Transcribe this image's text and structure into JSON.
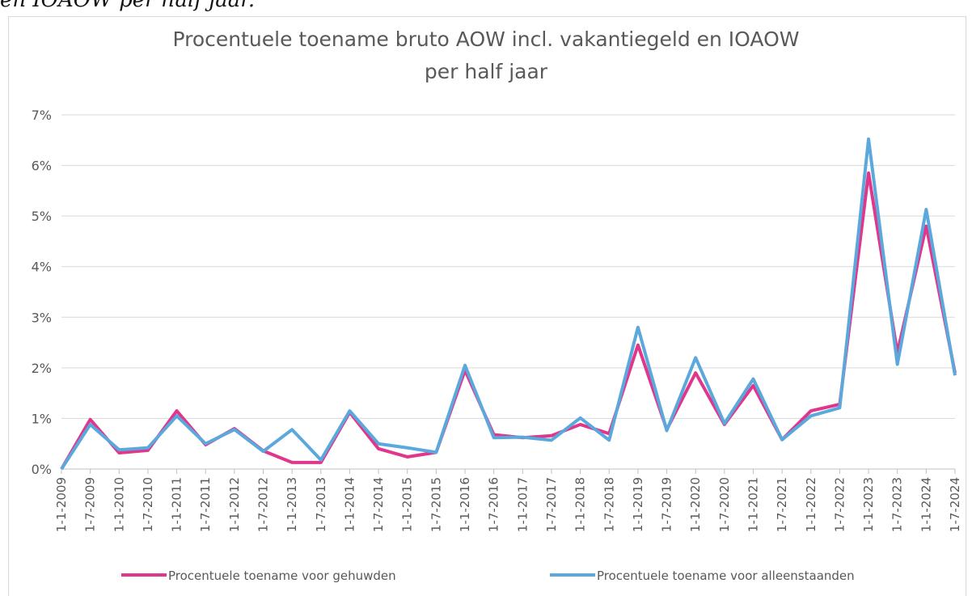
{
  "caption": "en IOAOW per half jaar.",
  "chart_data": {
    "type": "line",
    "title_lines": [
      "Procentuele toename bruto AOW incl. vakantiegeld en IOAOW",
      "per half jaar"
    ],
    "categories": [
      "1-1-2009",
      "1-7-2009",
      "1-1-2010",
      "1-7-2010",
      "1-1-2011",
      "1-7-2011",
      "1-1-2012",
      "1-7-2012",
      "1-1-2013",
      "1-7-2013",
      "1-1-2014",
      "1-7-2014",
      "1-1-2015",
      "1-7-2015",
      "1-1-2016",
      "1-7-2016",
      "1-1-2017",
      "1-7-2017",
      "1-1-2018",
      "1-7-2018",
      "1-1-2019",
      "1-7-2019",
      "1-1-2020",
      "1-7-2020",
      "1-1-2021",
      "1-7-2021",
      "1-1-2022",
      "1-7-2022",
      "1-1-2023",
      "1-7-2023",
      "1-1-2024",
      "1-7-2024"
    ],
    "series": [
      {
        "name": "Procentuele toename voor gehuwden",
        "color": "#e0368c",
        "values": [
          0,
          0.98,
          0.32,
          0.37,
          1.15,
          0.48,
          0.8,
          0.36,
          0.13,
          0.13,
          1.12,
          0.4,
          0.24,
          0.33,
          1.95,
          0.68,
          0.62,
          0.66,
          0.88,
          0.7,
          2.45,
          0.78,
          1.9,
          0.88,
          1.65,
          0.58,
          1.15,
          1.28,
          5.85,
          2.3,
          4.8,
          1.9
        ]
      },
      {
        "name": "Procentuele toename voor alleenstaanden",
        "color": "#5ba8dc",
        "values": [
          0,
          0.88,
          0.38,
          0.42,
          1.05,
          0.5,
          0.78,
          0.35,
          0.78,
          0.18,
          1.15,
          0.5,
          0.42,
          0.33,
          2.05,
          0.62,
          0.63,
          0.57,
          1.01,
          0.57,
          2.8,
          0.76,
          2.2,
          0.9,
          1.78,
          0.58,
          1.05,
          1.21,
          6.52,
          2.07,
          5.13,
          1.85
        ]
      }
    ],
    "ylim": [
      0,
      7
    ],
    "yticks": [
      {
        "value": 0,
        "label": "0%"
      },
      {
        "value": 1,
        "label": "1%"
      },
      {
        "value": 2,
        "label": "2%"
      },
      {
        "value": 3,
        "label": "3%"
      },
      {
        "value": 4,
        "label": "4%"
      },
      {
        "value": 5,
        "label": "5%"
      },
      {
        "value": 6,
        "label": "6%"
      },
      {
        "value": 7,
        "label": "7%"
      }
    ],
    "grid": true,
    "legend": "bottom"
  }
}
